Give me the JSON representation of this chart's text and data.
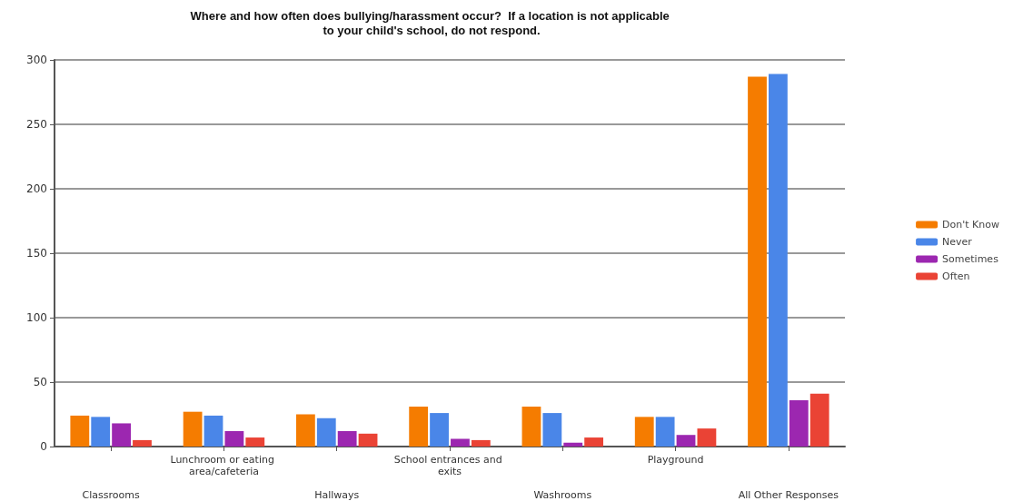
{
  "chart_data": {
    "type": "bar",
    "title": "Where and how often does bullying/harassment occur?  If a location is not applicable to your child's school, do not respond.",
    "categories": [
      "Classrooms",
      "Lunchroom or eating area/cafeteria",
      "Hallways",
      "School entrances and exits",
      "Washrooms",
      "Playground",
      "All Other Responses"
    ],
    "series": [
      {
        "name": "Don't Know",
        "color": "#f57c00",
        "values": [
          24,
          27,
          25,
          31,
          31,
          23,
          287
        ]
      },
      {
        "name": "Never",
        "color": "#4a86e8",
        "values": [
          23,
          24,
          22,
          26,
          26,
          23,
          289
        ]
      },
      {
        "name": "Sometimes",
        "color": "#9c27b0",
        "values": [
          18,
          12,
          12,
          6,
          3,
          9,
          36
        ]
      },
      {
        "name": "Often",
        "color": "#ea4335",
        "values": [
          5,
          7,
          10,
          5,
          7,
          14,
          41
        ]
      }
    ],
    "ylim": [
      0,
      300
    ],
    "yticks": [
      0,
      50,
      100,
      150,
      200,
      250,
      300
    ],
    "grid": "y",
    "legend": "right"
  }
}
